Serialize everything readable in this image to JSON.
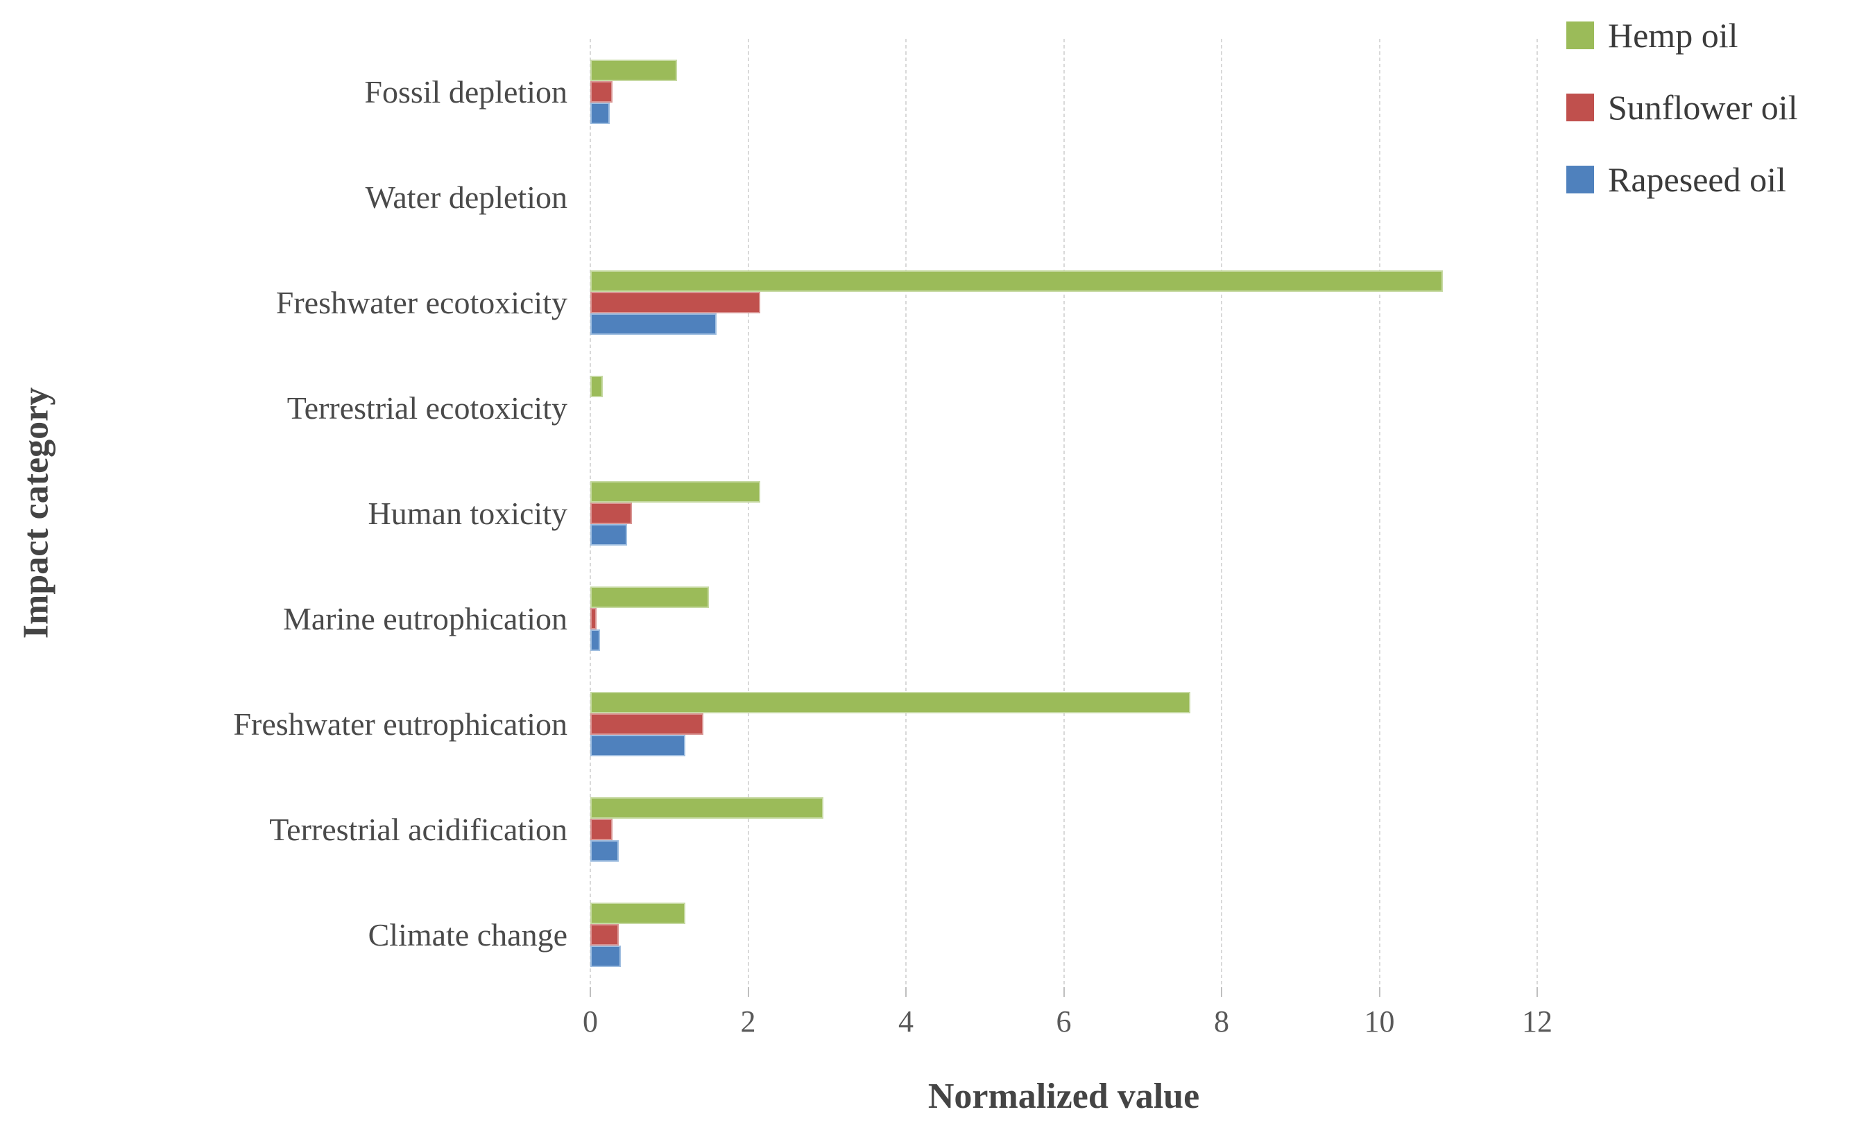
{
  "chart_data": {
    "type": "bar",
    "orientation": "horizontal",
    "title": "",
    "xlabel": "Normalized value",
    "ylabel": "Impact category",
    "xlim": [
      0,
      12
    ],
    "x_ticks": [
      0,
      2,
      4,
      6,
      8,
      10,
      12
    ],
    "grid": true,
    "legend_position": "top-right",
    "categories": [
      "Fossil depletion",
      "Water depletion",
      "Freshwater ecotoxicity",
      "Terrestrial ecotoxicity",
      "Human toxicity",
      "Marine eutrophication",
      "Freshwater eutrophication",
      "Terrestrial acidification",
      "Climate change"
    ],
    "series": [
      {
        "name": "Hemp oil",
        "color": "#9BBB59",
        "border_color": "#C6D9A2",
        "values": [
          1.1,
          0,
          10.8,
          0.16,
          2.15,
          1.5,
          7.6,
          2.95,
          1.2
        ]
      },
      {
        "name": "Sunflower oil",
        "color": "#C0504D",
        "border_color": "#D99694",
        "values": [
          0.28,
          0,
          2.15,
          0,
          0.53,
          0.08,
          1.43,
          0.28,
          0.36
        ]
      },
      {
        "name": "Rapeseed oil",
        "color": "#4F81BD",
        "border_color": "#9FBEE0",
        "values": [
          0.25,
          0,
          1.6,
          0,
          0.47,
          0.12,
          1.2,
          0.36,
          0.39
        ]
      }
    ]
  },
  "colors": {
    "gridline": "#D9D9D9",
    "tick_mark": "#BFBFBF",
    "axis_text": "#595959",
    "label_text": "#4A4A4A"
  }
}
